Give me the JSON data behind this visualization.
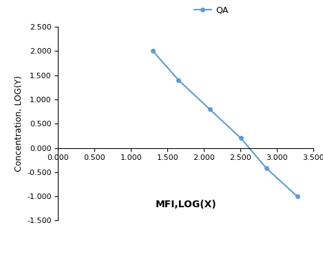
{
  "x": [
    1.301,
    1.653,
    2.079,
    2.505,
    2.857,
    3.279
  ],
  "y": [
    2.0,
    1.398,
    0.799,
    0.204,
    -0.42,
    -1.0
  ],
  "line_color": "#5b9bd5",
  "marker_color": "#5b9bd5",
  "marker_style": "o",
  "marker_size": 4,
  "line_width": 1.5,
  "xlabel": "MFI,LOG(X)",
  "ylabel": "Concentration, LOG(Y)",
  "xlim": [
    0.0,
    3.5
  ],
  "ylim": [
    -1.5,
    2.5
  ],
  "xticks": [
    0.0,
    0.5,
    1.0,
    1.5,
    2.0,
    2.5,
    3.0,
    3.5
  ],
  "yticks": [
    -1.5,
    -1.0,
    -0.5,
    0.0,
    0.5,
    1.0,
    1.5,
    2.0,
    2.5
  ],
  "legend_label": "QA",
  "xlabel_fontsize": 10,
  "ylabel_fontsize": 9,
  "tick_fontsize": 8,
  "legend_fontsize": 9,
  "background_color": "#ffffff"
}
